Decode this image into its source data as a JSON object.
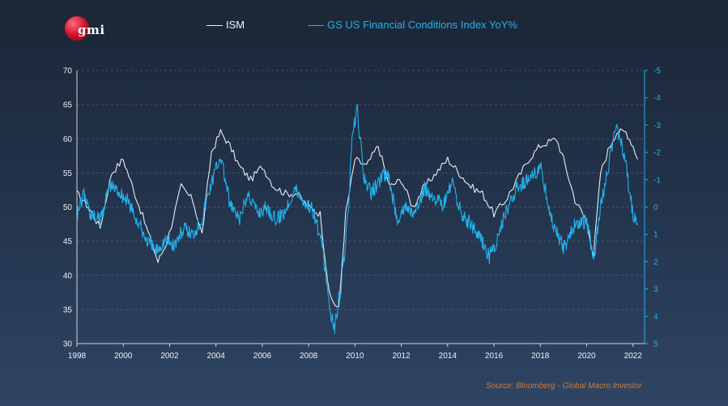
{
  "logo": {
    "text": "gmi"
  },
  "source": "Source: Bloomberg - Global Macro Investor",
  "chart_data": {
    "type": "line",
    "title": "",
    "legend_position": "top",
    "series": [
      {
        "name": "ISM",
        "axis": "left",
        "color": "#e9edf2",
        "x": [
          1998.0,
          1998.5,
          1999.0,
          1999.5,
          2000.0,
          2000.5,
          2001.0,
          2001.5,
          2001.9,
          2002.5,
          2003.0,
          2003.4,
          2003.8,
          2004.2,
          2004.6,
          2005.0,
          2005.5,
          2006.0,
          2006.5,
          2007.0,
          2007.5,
          2008.0,
          2008.5,
          2008.9,
          2009.3,
          2009.6,
          2010.0,
          2010.5,
          2011.0,
          2011.5,
          2012.0,
          2012.5,
          2013.0,
          2013.5,
          2014.0,
          2014.5,
          2015.0,
          2015.5,
          2016.0,
          2016.5,
          2017.0,
          2017.5,
          2018.0,
          2018.7,
          2019.0,
          2019.5,
          2020.0,
          2020.3,
          2020.6,
          2021.0,
          2021.3,
          2021.7,
          2022.0,
          2022.2
        ],
        "values": [
          52,
          50,
          47,
          55,
          57,
          52,
          47,
          42,
          45,
          53,
          51,
          46,
          58,
          61,
          59,
          56,
          54,
          56,
          53,
          52,
          52,
          50,
          49,
          37,
          35,
          49,
          57,
          56,
          59,
          53,
          54,
          50,
          53,
          55,
          57,
          55,
          53,
          52,
          49,
          51,
          54,
          57,
          59,
          60,
          57,
          51,
          48,
          43,
          55,
          59,
          61,
          61,
          59,
          57
        ]
      },
      {
        "name": "GS US Financial Conditions Index YoY%",
        "axis": "right",
        "color": "#21b1ea",
        "x": [
          1998.0,
          1998.3,
          1998.6,
          1999.0,
          1999.4,
          1999.8,
          2000.2,
          2000.6,
          2001.0,
          2001.4,
          2001.8,
          2002.2,
          2002.6,
          2003.0,
          2003.4,
          2003.8,
          2004.2,
          2004.6,
          2005.0,
          2005.4,
          2005.8,
          2006.2,
          2006.6,
          2007.0,
          2007.4,
          2007.8,
          2008.2,
          2008.6,
          2008.9,
          2009.1,
          2009.4,
          2009.7,
          2009.9,
          2010.1,
          2010.4,
          2010.7,
          2011.0,
          2011.4,
          2011.8,
          2012.2,
          2012.6,
          2013.0,
          2013.4,
          2013.8,
          2014.2,
          2014.6,
          2015.0,
          2015.4,
          2015.8,
          2016.1,
          2016.5,
          2017.0,
          2017.5,
          2018.0,
          2018.5,
          2019.0,
          2019.5,
          2020.0,
          2020.3,
          2020.6,
          2021.0,
          2021.3,
          2021.7,
          2022.0,
          2022.2
        ],
        "values": [
          0.3,
          -0.5,
          0.3,
          0.5,
          -0.8,
          -0.6,
          -0.2,
          0.5,
          1.2,
          1.6,
          1.2,
          1.4,
          0.8,
          1.0,
          0.4,
          -0.9,
          -1.9,
          -0.1,
          0.5,
          -0.5,
          0.2,
          0.0,
          0.5,
          0.1,
          -0.7,
          -0.2,
          0.1,
          1.5,
          3.6,
          4.5,
          2.9,
          0.3,
          -2.7,
          -3.5,
          -1.0,
          -0.5,
          -0.9,
          -1.3,
          0.4,
          0.0,
          0.3,
          -0.7,
          -0.4,
          0.0,
          -0.9,
          0.3,
          0.6,
          1.1,
          1.8,
          1.4,
          0.2,
          -0.7,
          -1.0,
          -1.5,
          0.5,
          1.5,
          0.6,
          0.5,
          1.9,
          0.0,
          -1.8,
          -3.0,
          -1.5,
          0.3,
          0.6
        ]
      }
    ],
    "x_axis": {
      "min": 1998,
      "max": 2022.5,
      "ticks": [
        "1998",
        "2000",
        "2002",
        "2004",
        "2006",
        "2008",
        "2010",
        "2012",
        "2014",
        "2016",
        "2018",
        "2020",
        "2022"
      ]
    },
    "y_left": {
      "min": 30,
      "max": 70,
      "ticks": [
        "30",
        "35",
        "40",
        "45",
        "50",
        "55",
        "60",
        "65",
        "70"
      ]
    },
    "y_right": {
      "min": 5,
      "max": -5,
      "inverted": true,
      "ticks": [
        "5",
        "4",
        "3",
        "2",
        "1",
        "0",
        "-1",
        "-2",
        "-3",
        "-4",
        "-5"
      ]
    }
  }
}
